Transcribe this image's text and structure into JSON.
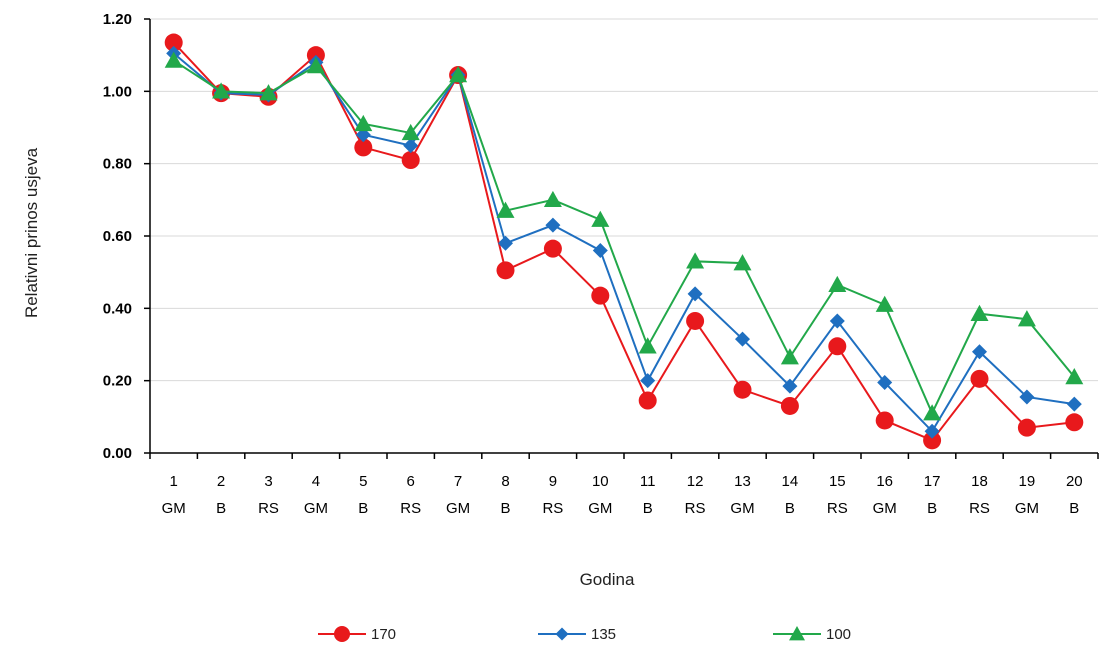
{
  "chart_data": {
    "type": "line",
    "title": "",
    "xlabel": "Godina",
    "ylabel": "Relativni prinos usjeva",
    "ylim": [
      0,
      1.2
    ],
    "yticks": [
      "0.00",
      "0.20",
      "0.40",
      "0.60",
      "0.80",
      "1.00",
      "1.20"
    ],
    "grid": true,
    "legend_position": "bottom",
    "categories": [
      {
        "year": "1",
        "crop": "GM"
      },
      {
        "year": "2",
        "crop": "B"
      },
      {
        "year": "3",
        "crop": "RS"
      },
      {
        "year": "4",
        "crop": "GM"
      },
      {
        "year": "5",
        "crop": "B"
      },
      {
        "year": "6",
        "crop": "RS"
      },
      {
        "year": "7",
        "crop": "GM"
      },
      {
        "year": "8",
        "crop": "B"
      },
      {
        "year": "9",
        "crop": "RS"
      },
      {
        "year": "10",
        "crop": "GM"
      },
      {
        "year": "11",
        "crop": "B"
      },
      {
        "year": "12",
        "crop": "RS"
      },
      {
        "year": "13",
        "crop": "GM"
      },
      {
        "year": "14",
        "crop": "B"
      },
      {
        "year": "15",
        "crop": "RS"
      },
      {
        "year": "16",
        "crop": "GM"
      },
      {
        "year": "17",
        "crop": "B"
      },
      {
        "year": "18",
        "crop": "RS"
      },
      {
        "year": "19",
        "crop": "GM"
      },
      {
        "year": "20",
        "crop": "B"
      }
    ],
    "series": [
      {
        "name": "170",
        "color": "#e8191c",
        "marker": "circle",
        "values": [
          1.135,
          0.995,
          0.985,
          1.1,
          0.845,
          0.81,
          1.045,
          0.505,
          0.565,
          0.435,
          0.145,
          0.365,
          0.175,
          0.13,
          0.295,
          0.09,
          0.035,
          0.205,
          0.07,
          0.085
        ]
      },
      {
        "name": "135",
        "color": "#1f6fc0",
        "marker": "diamond",
        "values": [
          1.105,
          0.995,
          0.99,
          1.08,
          0.88,
          0.85,
          1.045,
          0.58,
          0.63,
          0.56,
          0.2,
          0.44,
          0.315,
          0.185,
          0.365,
          0.195,
          0.06,
          0.28,
          0.155,
          0.135
        ]
      },
      {
        "name": "100",
        "color": "#22a84a",
        "marker": "triangle",
        "values": [
          1.085,
          1.0,
          0.995,
          1.07,
          0.91,
          0.885,
          1.045,
          0.67,
          0.7,
          0.645,
          0.295,
          0.53,
          0.525,
          0.265,
          0.465,
          0.41,
          0.11,
          0.385,
          0.37,
          0.21
        ]
      }
    ]
  }
}
